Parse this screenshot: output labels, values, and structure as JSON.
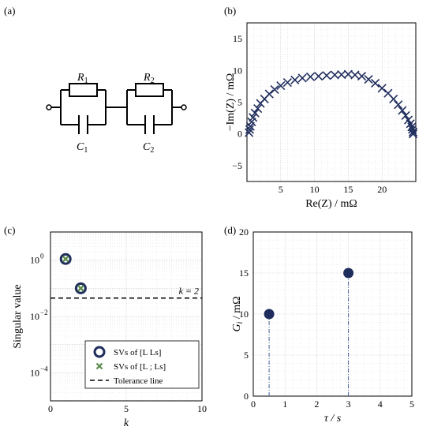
{
  "panel_labels": {
    "a": "(a)",
    "b": "(b)",
    "c": "(c)",
    "d": "(d)"
  },
  "circuit": {
    "type": "diagram",
    "components": [
      {
        "label": "R",
        "sub": "1"
      },
      {
        "label": "C",
        "sub": "1"
      },
      {
        "label": "R",
        "sub": "2"
      },
      {
        "label": "C",
        "sub": "2"
      }
    ]
  },
  "colors": {
    "navy": "#1f2d5c",
    "green": "#5b8a4a",
    "stem": "#3f5f9f"
  },
  "chart_data": [
    {
      "type": "scatter",
      "panel": "b",
      "xlabel": "Re(Z) / mΩ",
      "ylabel": "−Im(Z) / mΩ",
      "xlim": [
        0,
        25
      ],
      "ylim": [
        -7.5,
        17.5
      ],
      "xticks": [
        5,
        10,
        15,
        20
      ],
      "yticks": [
        -5,
        0,
        5,
        10,
        15
      ],
      "grid": true,
      "marker": "x",
      "points": [
        [
          0.3,
          0.2
        ],
        [
          0.4,
          0.7
        ],
        [
          0.5,
          1.2
        ],
        [
          0.7,
          1.9
        ],
        [
          0.9,
          2.6
        ],
        [
          1.2,
          3.3
        ],
        [
          1.6,
          4.0
        ],
        [
          2.0,
          4.8
        ],
        [
          2.6,
          5.5
        ],
        [
          3.3,
          6.3
        ],
        [
          4.1,
          7.0
        ],
        [
          5.0,
          7.6
        ],
        [
          6.0,
          8.1
        ],
        [
          7.1,
          8.5
        ],
        [
          8.2,
          8.8
        ],
        [
          9.4,
          9.0
        ],
        [
          10.6,
          9.1
        ],
        [
          11.8,
          9.2
        ],
        [
          13.0,
          9.3
        ],
        [
          14.0,
          9.35
        ],
        [
          15.0,
          9.4
        ],
        [
          16.0,
          9.3
        ],
        [
          17.0,
          9.1
        ],
        [
          18.0,
          8.6
        ],
        [
          19.0,
          8.0
        ],
        [
          20.0,
          7.2
        ],
        [
          20.9,
          6.4
        ],
        [
          21.7,
          5.5
        ],
        [
          22.4,
          4.6
        ],
        [
          23.0,
          3.7
        ],
        [
          23.5,
          2.9
        ],
        [
          23.9,
          2.2
        ],
        [
          24.2,
          1.6
        ],
        [
          24.4,
          1.1
        ],
        [
          24.5,
          0.7
        ],
        [
          24.6,
          0.3
        ],
        [
          24.6,
          0.0
        ]
      ]
    },
    {
      "type": "scatter",
      "panel": "c",
      "xlabel": "k",
      "ylabel": "Singular value",
      "xlim": [
        0,
        10
      ],
      "ylim_log10": [
        -5,
        1
      ],
      "yscale": "log",
      "xticks": [
        0,
        5,
        10
      ],
      "yticks_exp": [
        0,
        -2,
        -4
      ],
      "grid": true,
      "series": [
        {
          "name": "SVs of [L Ls]",
          "marker": "circle",
          "x": [
            1,
            2
          ],
          "y": [
            1.1,
            0.1
          ]
        },
        {
          "name": "SVs of [L ; Ls]",
          "marker": "x",
          "x": [
            1,
            2
          ],
          "y": [
            1.1,
            0.1
          ]
        }
      ],
      "tolerance_line": {
        "name": "Tolerance line",
        "y": 0.045
      },
      "annotation": "k = 2",
      "legend_position": "bottom-center"
    },
    {
      "type": "bar",
      "style": "stem",
      "panel": "d",
      "xlabel": "τ / s",
      "ylabel": "G_i / mΩ",
      "xlim": [
        0,
        5
      ],
      "ylim": [
        0,
        20
      ],
      "xticks": [
        0,
        1,
        2,
        3,
        4,
        5
      ],
      "yticks": [
        0,
        5,
        10,
        15,
        20
      ],
      "grid": true,
      "x": [
        0.5,
        3
      ],
      "values": [
        10,
        15
      ]
    }
  ]
}
